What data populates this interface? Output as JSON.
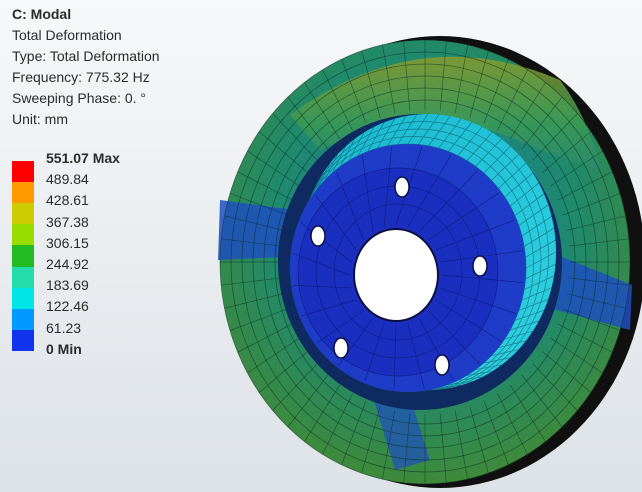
{
  "info": {
    "title": "C: Modal",
    "result_name": "Total Deformation",
    "type_line": "Type: Total Deformation",
    "frequency_line": "Frequency: 775.32 Hz",
    "phase_line": "Sweeping Phase: 0. °",
    "unit_line": "Unit: mm"
  },
  "legend": {
    "labels": [
      "551.07 Max",
      "489.84",
      "428.61",
      "367.38",
      "306.15",
      "244.92",
      "183.69",
      "122.46",
      "61.23",
      "0 Min"
    ],
    "colors": [
      "#ff0000",
      "#ff9900",
      "#cccc00",
      "#99dd00",
      "#22bb22",
      "#22ddaa",
      "#00e5e5",
      "#0099ff",
      "#1133ee",
      "#0000ee"
    ]
  },
  "model": {
    "name": "brake-disc-mesh",
    "colors": {
      "outer_ring": "#2a8a6a",
      "outer_ring_top": "#6aa02a",
      "hat_wall": "#22c0c8",
      "hat_face": "#1f3cc9",
      "hub_dark": "#1626b0",
      "background": "#eceff2"
    }
  }
}
